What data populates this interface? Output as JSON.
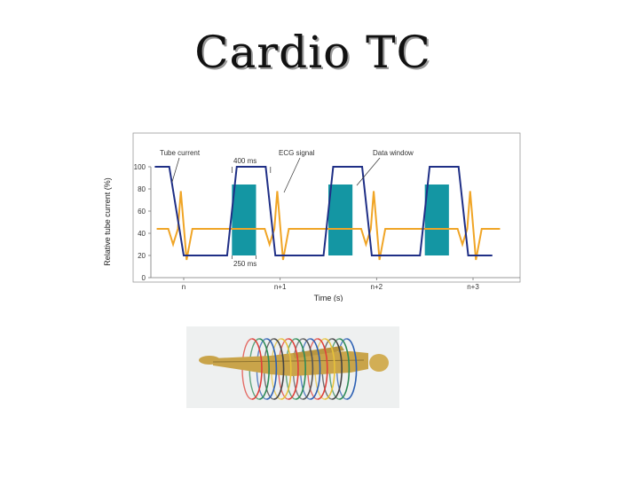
{
  "slide": {
    "title": "Cardio TC"
  },
  "chart_data": {
    "type": "line",
    "xlabel": "Time (s)",
    "ylabel": "Relative tube current (%)",
    "ylim": [
      0,
      100
    ],
    "y_ticks": [
      0,
      20,
      40,
      60,
      80,
      100
    ],
    "x_ticks": [
      "n",
      "n+1",
      "n+2",
      "n+3"
    ],
    "grid": false,
    "series": [
      {
        "name": "Tube current",
        "color": "#1f2f86",
        "points": [
          [
            -0.3,
            100
          ],
          [
            -0.15,
            100
          ],
          [
            0.0,
            20
          ],
          [
            0.45,
            20
          ],
          [
            0.55,
            100
          ],
          [
            0.85,
            100
          ],
          [
            0.95,
            20
          ],
          [
            1.45,
            20
          ],
          [
            1.55,
            100
          ],
          [
            1.85,
            100
          ],
          [
            1.95,
            20
          ],
          [
            2.45,
            20
          ],
          [
            2.55,
            100
          ],
          [
            2.85,
            100
          ],
          [
            2.95,
            20
          ],
          [
            3.2,
            20
          ]
        ]
      },
      {
        "name": "ECG signal",
        "color": "#f0a526"
      }
    ],
    "data_windows": {
      "name": "Data window",
      "color": "#1496a3",
      "starts": [
        0.5,
        1.5,
        2.5
      ],
      "width": 0.25,
      "top": 84
    },
    "annotations": [
      {
        "label": "400 ms"
      },
      {
        "label": "250 ms"
      }
    ]
  },
  "illustration": {
    "icon": "patient-scanner-icon",
    "body_color": "#c9a44a"
  }
}
